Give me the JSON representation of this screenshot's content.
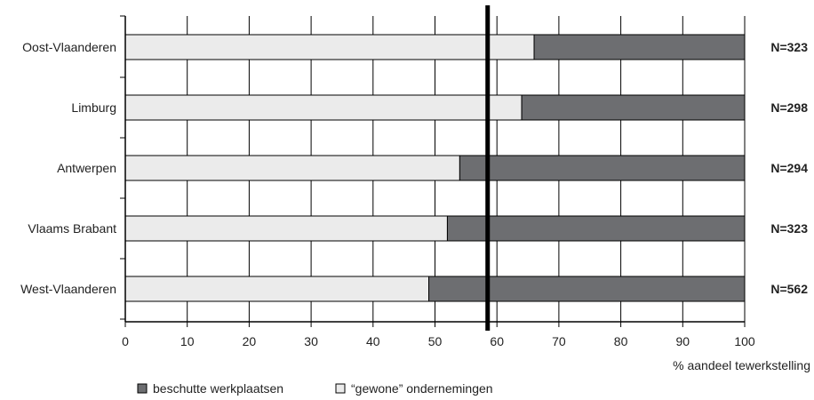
{
  "chart_data": {
    "type": "bar",
    "orientation": "horizontal",
    "stacked": true,
    "categories": [
      "Oost-Vlaanderen",
      "Limburg",
      "Antwerpen",
      "Vlaams Brabant",
      "West-Vlaanderen"
    ],
    "series": [
      {
        "name": "“gewone” ondernemingen",
        "color": "#ebebeb",
        "values": [
          66,
          64,
          54,
          52,
          49
        ]
      },
      {
        "name": "beschutte werkplaatsen",
        "color": "#6d6e71",
        "values": [
          34,
          36,
          46,
          48,
          51
        ]
      }
    ],
    "n_labels": [
      "N=323",
      "N=298",
      "N=294",
      "N=323",
      "N=562"
    ],
    "reference_line": 58.5,
    "xlim": [
      0,
      100
    ],
    "xticks": [
      "0",
      "10",
      "20",
      "30",
      "40",
      "50",
      "60",
      "70",
      "80",
      "90",
      "100"
    ],
    "xlabel": "% aandeel tewerkstelling",
    "grid": "vertical",
    "legend_position": "bottom-left",
    "legend": [
      {
        "label": "beschutte werkplaatsen",
        "color": "#6d6e71"
      },
      {
        "label": "“gewone” ondernemingen",
        "color": "#ebebeb"
      }
    ]
  }
}
